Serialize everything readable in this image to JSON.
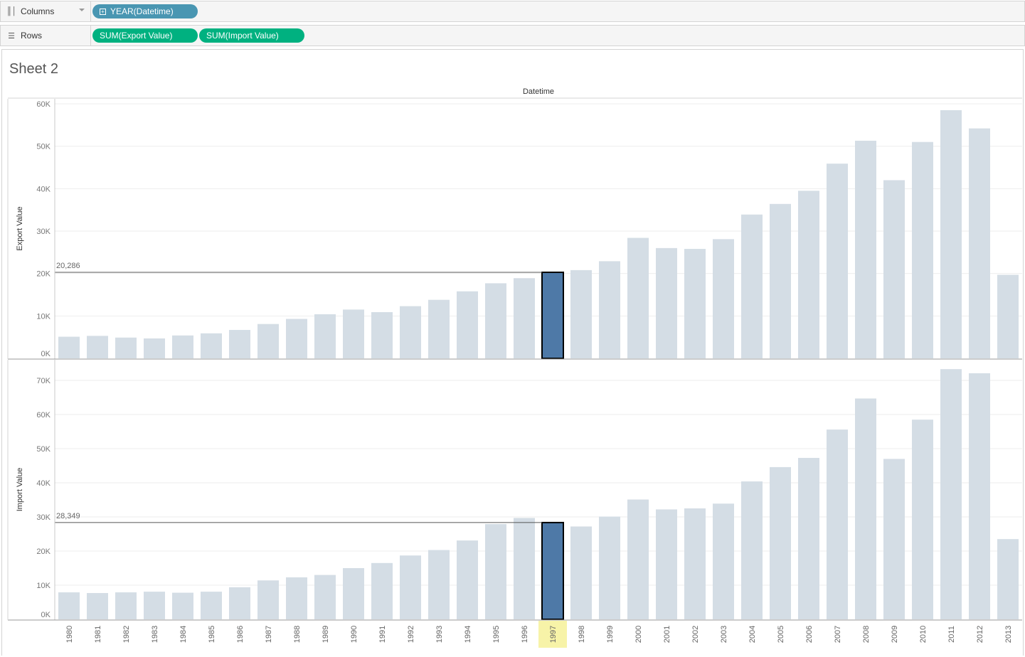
{
  "shelves": {
    "columns": {
      "label": "Columns",
      "icon": "columns-icon",
      "pills": [
        "YEAR(Datetime)"
      ]
    },
    "rows": {
      "label": "Rows",
      "icon": "rows-icon",
      "pills": [
        "SUM(Export Value)",
        "SUM(Import Value)"
      ]
    }
  },
  "sheet": {
    "title": "Sheet 2"
  },
  "colors": {
    "bar": "#d4dde5",
    "bar_selected": "#4e79a7",
    "highlight_label": "#f7f3a8",
    "grid": "#eeeeee",
    "pill_dimension": "#4996b2",
    "pill_measure": "#00b180"
  },
  "chart_data": [
    {
      "type": "bar",
      "header": "Datetime",
      "ylabel": "Export Value",
      "ylim": [
        0,
        60000
      ],
      "yticks": [
        0,
        10000,
        20000,
        30000,
        40000,
        50000,
        60000
      ],
      "ytick_labels": [
        "0K",
        "10K",
        "20K",
        "30K",
        "40K",
        "50K",
        "60K"
      ],
      "categories": [
        "1980",
        "1981",
        "1982",
        "1983",
        "1984",
        "1985",
        "1986",
        "1987",
        "1988",
        "1989",
        "1990",
        "1991",
        "1992",
        "1993",
        "1994",
        "1995",
        "1996",
        "1997",
        "1998",
        "1999",
        "2000",
        "2001",
        "2002",
        "2003",
        "2004",
        "2005",
        "2006",
        "2007",
        "2008",
        "2009",
        "2010",
        "2011",
        "2012",
        "2013"
      ],
      "values": [
        5100,
        5300,
        4900,
        4700,
        5400,
        5900,
        6700,
        8100,
        9300,
        10400,
        11500,
        10900,
        12300,
        13800,
        15800,
        17700,
        18900,
        20286,
        20800,
        22900,
        28400,
        26000,
        25800,
        28100,
        33900,
        36400,
        39500,
        45900,
        51300,
        42000,
        51000,
        58500,
        54200,
        19700
      ],
      "selected": "1997",
      "reference_label": "20,286"
    },
    {
      "type": "bar",
      "ylabel": "Import Value",
      "ylim": [
        0,
        75000
      ],
      "yticks": [
        0,
        10000,
        20000,
        30000,
        40000,
        50000,
        60000,
        70000
      ],
      "ytick_labels": [
        "0K",
        "10K",
        "20K",
        "30K",
        "40K",
        "50K",
        "60K",
        "70K"
      ],
      "categories": [
        "1980",
        "1981",
        "1982",
        "1983",
        "1984",
        "1985",
        "1986",
        "1987",
        "1988",
        "1989",
        "1990",
        "1991",
        "1992",
        "1993",
        "1994",
        "1995",
        "1996",
        "1997",
        "1998",
        "1999",
        "2000",
        "2001",
        "2002",
        "2003",
        "2004",
        "2005",
        "2006",
        "2007",
        "2008",
        "2009",
        "2010",
        "2011",
        "2012",
        "2013"
      ],
      "values": [
        7900,
        7700,
        7900,
        8100,
        7800,
        8100,
        9400,
        11400,
        12300,
        13000,
        15000,
        16500,
        18700,
        20300,
        23100,
        27900,
        29700,
        28349,
        27200,
        30100,
        35100,
        32200,
        32500,
        33900,
        40400,
        44600,
        47300,
        55600,
        64700,
        47000,
        58500,
        73300,
        72100,
        23500
      ],
      "selected": "1997",
      "reference_label": "28,349"
    }
  ]
}
